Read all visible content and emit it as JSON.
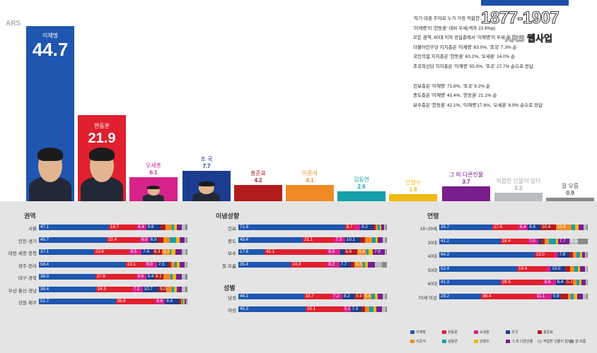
{
  "header": {
    "ars_label": "ARS",
    "phone": "1877-1907",
    "phone_sub": "ARS 웹사업"
  },
  "notes": [
    "'차기 대권 주자로 누가 가장 적합한',",
    "'이재명'이 '한동훈' 대비 우세(격차 22.8%p)",
    "모든 권역, 60대 이하 응답층에서 '이재명'이 우세",
    "더불어민주당 지지층은 '이재명' 83.0%, '조국' 7.3% 순",
    "국민의힘 지지층은 '한동훈' 63.2%, '오세훈' 14.0% 순",
    "조국혁신당 지지층은 '이재명' 55.0%, '조국' 27.7% 순으로 응답",
    "",
    "진보층은 '이재명' 71.8%, '조국' 9.2% 순",
    "중도층은 '이재명' 43.4%, '한동훈' 21.1% 순",
    "보수층은 '한동훈' 42.1%, '이재명'17.6%, '오세훈' 8.9% 순으로 응답"
  ],
  "colors": {
    "이재명": "#1e56b0",
    "한동훈": "#e0202e",
    "오세훈": "#d6228a",
    "조국": "#1c3d8f",
    "홍준표": "#b31c1c",
    "이준석": "#f08a25",
    "김동연": "#14a0a6",
    "안철수": "#f0b90b",
    "그 외 다른인물": "#7a1d8f",
    "적합한 인물이 없다": "#b9bcc0",
    "잘 모름": "#8a8a8a"
  },
  "chart_data": [
    {
      "type": "bar",
      "title": "",
      "categories": [
        "이재명",
        "한동훈",
        "오세훈",
        "조 국",
        "홍준표",
        "이준석",
        "김동연",
        "안철수",
        "그 외 다른인물",
        "적합한 인물이 없다",
        "잘 모름"
      ],
      "values": [
        44.7,
        21.9,
        6.1,
        7.7,
        4.2,
        4.1,
        2.6,
        1.8,
        3.7,
        2.2,
        0.9
      ],
      "labels": [
        "44.7",
        "21.9",
        "6.1",
        "7.7",
        "4.2",
        "4.1",
        "2.6",
        "1.8",
        "3.7",
        "2.2",
        "0.9"
      ]
    },
    {
      "type": "bar",
      "stacked": true,
      "orientation": "horizontal",
      "title": "권역",
      "categories": [
        "서울",
        "인천·경기",
        "대전·세종·충청",
        "광주·전라",
        "대구·경북",
        "부산·울산·경남",
        "강원·제주"
      ],
      "series_order": [
        "이재명",
        "한동훈",
        "오세훈",
        "조국",
        "홍준표",
        "이준석",
        "김동연",
        "안철수",
        "그 외 다른인물",
        "적합한 인물이 없다",
        "잘 모름"
      ],
      "rows": [
        [
          47.1,
          18.7,
          6.4,
          9.8,
          3.4,
          4.0,
          1.8,
          1.6,
          3.5,
          2.4,
          1.3
        ],
        [
          45.7,
          22.4,
          6.0,
          6.0,
          3.6,
          4.2,
          4.6,
          2.1,
          3.3,
          1.4,
          0.7
        ],
        [
          37.1,
          23.6,
          8.5,
          7.4,
          6.3,
          5.2,
          1.2,
          2.6,
          4.3,
          2.8,
          1.0
        ],
        [
          58.4,
          13.1,
          8.0,
          7.5,
          2.0,
          2.6,
          1.5,
          1.8,
          3.1,
          1.4,
          0.6
        ],
        [
          38.0,
          27.6,
          6.6,
          5.4,
          6.1,
          4.9,
          1.5,
          2.3,
          3.6,
          2.8,
          1.2
        ],
        [
          38.4,
          24.3,
          7.2,
          10.7,
          5.0,
          3.9,
          1.4,
          1.8,
          3.5,
          2.6,
          1.2
        ],
        [
          51.7,
          26.6,
          6.6,
          9.4,
          1.2,
          0.8,
          0.9,
          0.8,
          0.9,
          0.6,
          0.5
        ]
      ],
      "labels": [
        [
          "47.1",
          "18.7",
          "6.4",
          "9.8"
        ],
        [
          "45.7",
          "22.4",
          "6.0",
          "6.0"
        ],
        [
          "37.1",
          "23.6",
          "8.5",
          "7.4",
          "6.3",
          "5.2"
        ],
        [
          "58.4",
          "13.1",
          "8.0",
          "7.5"
        ],
        [
          "38.0",
          "27.6",
          "6.6",
          "5.4",
          "6.1"
        ],
        [
          "38.4",
          "24.3",
          "7.2",
          "10.7",
          "5.0"
        ],
        [
          "51.7",
          "26.6",
          "6.6",
          "9.4"
        ]
      ]
    },
    {
      "type": "bar",
      "stacked": true,
      "orientation": "horizontal",
      "title": "이념성향",
      "categories": [
        "진보",
        "중도",
        "보수",
        "잘 모름"
      ],
      "series_order": [
        "이재명",
        "한동훈",
        "오세훈",
        "조국",
        "홍준표",
        "이준석",
        "김동연",
        "안철수",
        "그 외 다른인물",
        "적합한 인물이 없다",
        "잘 모름"
      ],
      "rows": [
        [
          71.8,
          5.7,
          4.5,
          9.2,
          1.1,
          1.4,
          1.6,
          0.8,
          1.9,
          1.2,
          0.8
        ],
        [
          43.4,
          21.1,
          7.3,
          10.1,
          3.3,
          4.6,
          2.4,
          1.6,
          3.2,
          2.0,
          1.0
        ],
        [
          17.6,
          42.1,
          8.9,
          2.6,
          8.8,
          6.4,
          1.4,
          2.8,
          7.9,
          1.0,
          0.5
        ],
        [
          35.4,
          24.3,
          8.2,
          7.7,
          2.6,
          5.5,
          1.5,
          2.2,
          4.5,
          5.0,
          3.1
        ]
      ],
      "labels": [
        [
          "71.8",
          "5.7",
          "",
          "9.2"
        ],
        [
          "43.4",
          "21.1",
          "7.3",
          "10.1"
        ],
        [
          "17.6",
          "42.1",
          "8.9",
          "",
          "8.8",
          "6.4",
          "",
          "",
          "7.9"
        ],
        [
          "35.4",
          "24.3",
          "8.2",
          "7.7",
          "",
          "5.5"
        ]
      ]
    },
    {
      "type": "bar",
      "stacked": true,
      "orientation": "horizontal",
      "title": "성별",
      "categories": [
        "남성",
        "여성"
      ],
      "series_order": [
        "이재명",
        "한동훈",
        "오세훈",
        "조국",
        "홍준표",
        "이준석",
        "김동연",
        "안철수",
        "그 외 다른인물",
        "적합한 인물이 없다",
        "잘 모름"
      ],
      "rows": [
        [
          44.1,
          18.7,
          7.2,
          8.2,
          5.9,
          5.4,
          2.4,
          1.8,
          3.6,
          2.0,
          0.7
        ],
        [
          45.3,
          25.1,
          5.1,
          7.3,
          2.6,
          2.8,
          2.7,
          1.8,
          3.8,
          2.4,
          1.1
        ]
      ],
      "labels": [
        [
          "44.1",
          "18.7",
          "7.2",
          "8.2",
          "5.9",
          "5.4"
        ],
        [
          "45.3",
          "25.1",
          "5.1",
          "7.3"
        ]
      ]
    },
    {
      "type": "bar",
      "stacked": true,
      "orientation": "horizontal",
      "title": "연령",
      "categories": [
        "18~29세",
        "30대",
        "40대",
        "50대",
        "60대",
        "70세 이상"
      ],
      "series_order": [
        "이재명",
        "한동훈",
        "오세훈",
        "조국",
        "홍준표",
        "이준석",
        "김동연",
        "안철수",
        "그 외 다른인물",
        "적합한 인물이 없다",
        "잘 모름"
      ],
      "rows": [
        [
          35.7,
          17.6,
          6.4,
          8.4,
          10.4,
          10.6,
          2.5,
          2.0,
          3.6,
          1.8,
          1.0
        ],
        [
          41.2,
          18.4,
          7.0,
          2.0,
          2.5,
          2.8,
          4.6,
          1.5,
          7.7,
          5.9,
          6.4
        ],
        [
          64.2,
          13.0,
          2.6,
          7.8,
          2.5,
          2.4,
          2.1,
          1.4,
          2.3,
          1.0,
          0.7
        ],
        [
          52.4,
          19.4,
          3.1,
          10.0,
          3.0,
          3.2,
          2.2,
          1.5,
          3.4,
          1.2,
          0.6
        ],
        [
          41.3,
          28.5,
          8.6,
          6.4,
          5.1,
          2.3,
          2.1,
          1.6,
          2.5,
          1.0,
          0.6
        ],
        [
          28.2,
          36.4,
          11.1,
          5.9,
          5.0,
          1.8,
          2.0,
          2.4,
          4.1,
          2.0,
          1.1
        ]
      ],
      "labels": [
        [
          "35.7",
          "17.6",
          "6.4",
          "8.4",
          "10.4",
          "10.6"
        ],
        [
          "41.2",
          "18.4",
          "7.0",
          "",
          "",
          "",
          "",
          "",
          "7.7",
          "5.9"
        ],
        [
          "64.2",
          "13.0",
          "",
          "7.8"
        ],
        [
          "52.4",
          "19.4",
          "",
          "10.0"
        ],
        [
          "41.3",
          "28.5",
          "8.6",
          "6.4",
          "5.1"
        ],
        [
          "28.2",
          "36.4",
          "11.1",
          "5.9"
        ]
      ]
    }
  ],
  "legend": [
    "이재명",
    "한동훈",
    "오세훈",
    "조국",
    "홍준표",
    "이준석",
    "김동연",
    "안철수",
    "그 외 다른인물",
    "적합한 인물이 없다",
    "잘 모름"
  ]
}
